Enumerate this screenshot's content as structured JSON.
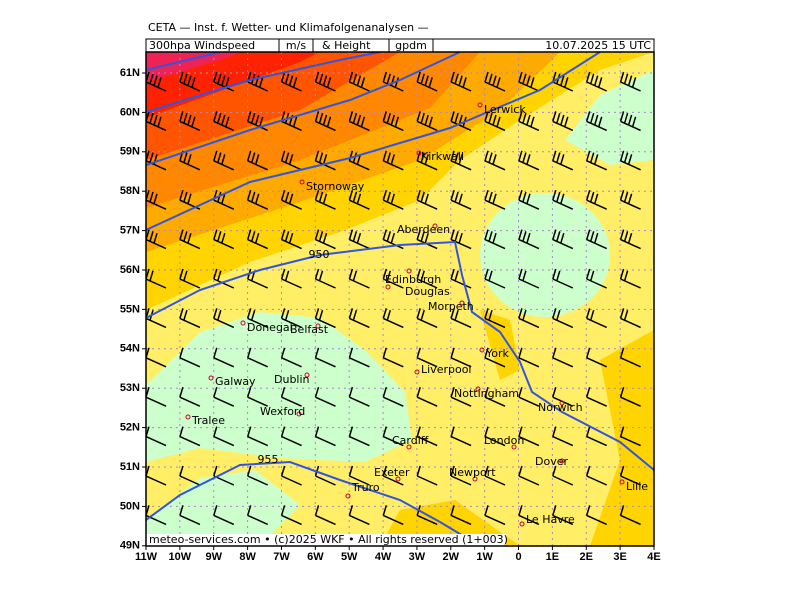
{
  "header": {
    "title": "CETA — Inst. f. Wetter- und Klimafolgenanalysen —",
    "product": "300hpa Windspeed",
    "unit_speed": "m/s",
    "height_label": "& Height",
    "unit_height": "gpdm",
    "valid": "10.07.2025 15 UTC"
  },
  "map": {
    "lat_labels": [
      "61N",
      "60N",
      "59N",
      "58N",
      "57N",
      "56N",
      "55N",
      "54N",
      "53N",
      "52N",
      "51N",
      "50N",
      "49N"
    ],
    "lon_labels": [
      "11W",
      "10W",
      "9W",
      "8W",
      "7W",
      "6W",
      "5W",
      "4W",
      "3W",
      "2W",
      "1W",
      "0",
      "1E",
      "2E",
      "3E",
      "4E"
    ],
    "cities": [
      "Lerwick",
      "Kirkwall",
      "Stornoway",
      "Aberdeen",
      "Edinburgh",
      "Douglas",
      "Morpeth",
      "Donegal",
      "Belfast",
      "York",
      "Liverpool",
      "Galway",
      "Dublin",
      "Nottingham",
      "Norwich",
      "Wexford",
      "Tralee",
      "Cardiff",
      "London",
      "Dover",
      "Exeter",
      "Newport",
      "Lille",
      "Truro",
      "Le Havre"
    ],
    "contour_labels": [
      "950",
      "955"
    ],
    "footer": "meteo-services.com • (c)2025 WKF • All rights reserved (1+003)"
  }
}
